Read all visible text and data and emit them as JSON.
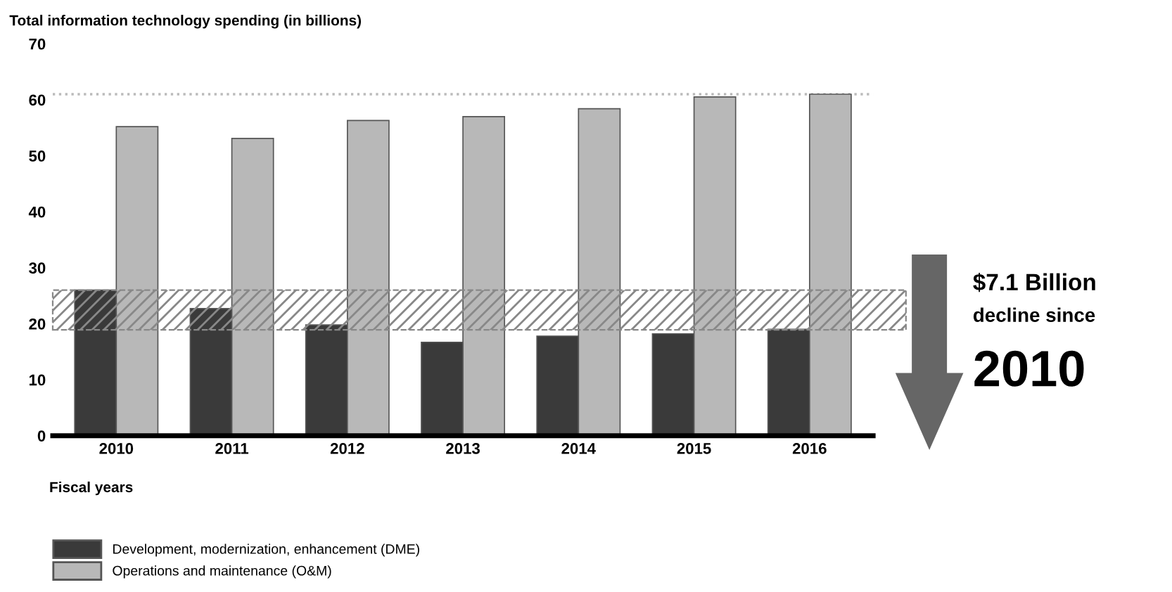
{
  "chart_data": {
    "type": "bar",
    "title": "Total information technology spending (in billions)",
    "xlabel": "Fiscal years",
    "categories": [
      "2010",
      "2011",
      "2012",
      "2013",
      "2014",
      "2015",
      "2016"
    ],
    "series": [
      {
        "name": "Development, modernization, enhancement (DME)",
        "color": "#3a3a3a",
        "values": [
          26.0,
          22.7,
          19.8,
          16.7,
          17.8,
          18.2,
          19.0
        ]
      },
      {
        "name": "Operations and maintenance (O&M)",
        "color": "#b8b8b8",
        "values": [
          55.2,
          53.1,
          56.3,
          57.0,
          58.4,
          60.5,
          61.0
        ]
      }
    ],
    "ylim": [
      0,
      70
    ],
    "yticks": [
      0,
      10,
      20,
      30,
      40,
      50,
      60,
      70
    ],
    "grid": false,
    "legend": "bottom",
    "ref_lines": [
      {
        "axis": "y",
        "value": 61,
        "label": null,
        "color": "#bbbbbb",
        "line_style": "dotted"
      }
    ],
    "bands": [
      {
        "axis": "y",
        "from": 18.9,
        "to": 26.0,
        "label": null,
        "color": "#888888"
      }
    ],
    "annotations": [
      "$7.1 Billion",
      "decline since",
      "2010"
    ]
  }
}
